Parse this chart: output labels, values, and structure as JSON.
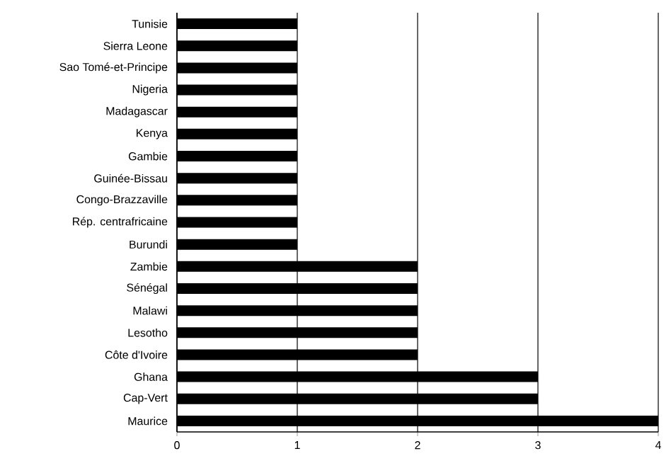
{
  "chart_data": {
    "type": "bar",
    "orientation": "horizontal",
    "categories": [
      "Tunisie",
      "Sierra Leone",
      "Sao Tomé-et-Principe",
      "Nigeria",
      "Madagascar",
      "Kenya",
      "Gambie",
      "Guinée-Bissau",
      "Congo-Brazzaville",
      "Rép. centrafricaine",
      "Burundi",
      "Zambie",
      "Sénégal",
      "Malawi",
      "Lesotho",
      "Côte d'Ivoire",
      "Ghana",
      "Cap-Vert",
      "Maurice"
    ],
    "values": [
      1,
      1,
      1,
      1,
      1,
      1,
      1,
      1,
      1,
      1,
      1,
      2,
      2,
      2,
      2,
      2,
      3,
      3,
      4
    ],
    "color": "#000000",
    "xlim": [
      0,
      4
    ],
    "xticks": [
      0,
      1,
      2,
      3,
      4
    ],
    "grid": "x"
  }
}
